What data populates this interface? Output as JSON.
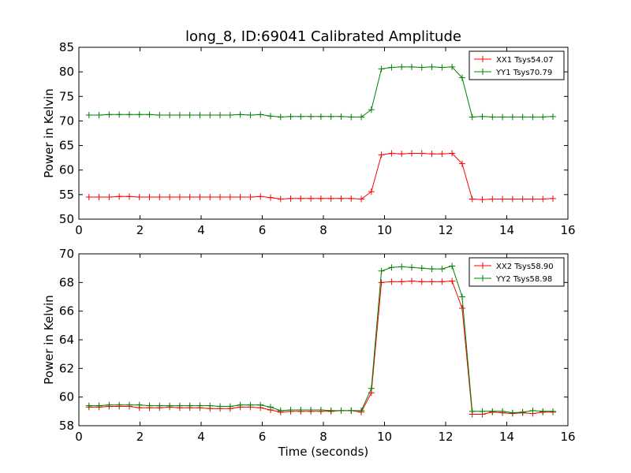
{
  "chart_data": [
    {
      "type": "line",
      "title": "long_8, ID:69041 Calibrated Amplitude",
      "xlabel": "",
      "ylabel": "Power in Kelvin",
      "xlim": [
        0,
        16
      ],
      "ylim": [
        50,
        85
      ],
      "xticks": [
        "0",
        "2",
        "4",
        "6",
        "8",
        "10",
        "12",
        "14",
        "16"
      ],
      "yticks": [
        "50",
        "55",
        "60",
        "65",
        "70",
        "75",
        "80",
        "85"
      ],
      "grid": false,
      "legend_position": "top-right",
      "x": [
        0.33,
        0.66,
        0.99,
        1.32,
        1.65,
        1.98,
        2.31,
        2.64,
        2.97,
        3.3,
        3.63,
        3.96,
        4.29,
        4.62,
        4.95,
        5.28,
        5.61,
        5.94,
        6.27,
        6.6,
        6.93,
        7.26,
        7.59,
        7.92,
        8.25,
        8.58,
        8.91,
        9.24,
        9.57,
        9.9,
        10.23,
        10.56,
        10.89,
        11.22,
        11.55,
        11.88,
        12.21,
        12.54,
        12.87,
        13.2,
        13.53,
        13.86,
        14.19,
        14.52,
        14.85,
        15.18,
        15.51
      ],
      "series": [
        {
          "name": "XX1 Tsys54.07",
          "color": "#ff0000",
          "values": [
            54.5,
            54.5,
            54.5,
            54.6,
            54.6,
            54.5,
            54.5,
            54.5,
            54.5,
            54.5,
            54.5,
            54.5,
            54.5,
            54.5,
            54.5,
            54.5,
            54.5,
            54.6,
            54.4,
            54.1,
            54.2,
            54.2,
            54.2,
            54.2,
            54.2,
            54.2,
            54.2,
            54.1,
            55.6,
            63.1,
            63.4,
            63.3,
            63.4,
            63.4,
            63.3,
            63.3,
            63.4,
            61.3,
            54.1,
            54.0,
            54.1,
            54.1,
            54.1,
            54.1,
            54.1,
            54.1,
            54.2
          ]
        },
        {
          "name": "YY1 Tsys70.79",
          "color": "#008000",
          "values": [
            71.2,
            71.2,
            71.3,
            71.3,
            71.3,
            71.3,
            71.3,
            71.2,
            71.2,
            71.2,
            71.2,
            71.2,
            71.2,
            71.2,
            71.2,
            71.3,
            71.2,
            71.3,
            71.0,
            70.8,
            70.9,
            70.9,
            70.9,
            70.9,
            70.9,
            70.9,
            70.8,
            70.8,
            72.3,
            80.6,
            80.9,
            81.0,
            81.0,
            80.9,
            81.0,
            80.9,
            81.0,
            78.8,
            70.8,
            70.9,
            70.8,
            70.8,
            70.8,
            70.8,
            70.8,
            70.8,
            70.9
          ]
        }
      ]
    },
    {
      "type": "line",
      "title": "",
      "xlabel": "Time (seconds)",
      "ylabel": "Power in Kelvin",
      "xlim": [
        0,
        16
      ],
      "ylim": [
        58,
        70
      ],
      "xticks": [
        "0",
        "2",
        "4",
        "6",
        "8",
        "10",
        "12",
        "14",
        "16"
      ],
      "yticks": [
        "58",
        "60",
        "62",
        "64",
        "66",
        "68",
        "70"
      ],
      "grid": false,
      "legend_position": "top-right",
      "x": [
        0.33,
        0.66,
        0.99,
        1.32,
        1.65,
        1.98,
        2.31,
        2.64,
        2.97,
        3.3,
        3.63,
        3.96,
        4.29,
        4.62,
        4.95,
        5.28,
        5.61,
        5.94,
        6.27,
        6.6,
        6.93,
        7.26,
        7.59,
        7.92,
        8.25,
        8.58,
        8.91,
        9.24,
        9.57,
        9.9,
        10.23,
        10.56,
        10.89,
        11.22,
        11.55,
        11.88,
        12.21,
        12.54,
        12.87,
        13.2,
        13.53,
        13.86,
        14.19,
        14.52,
        14.85,
        15.18,
        15.51
      ],
      "series": [
        {
          "name": "XX2 Tsys58.90",
          "color": "#ff0000",
          "values": [
            59.3,
            59.3,
            59.35,
            59.35,
            59.35,
            59.25,
            59.25,
            59.25,
            59.3,
            59.25,
            59.25,
            59.25,
            59.2,
            59.2,
            59.2,
            59.3,
            59.3,
            59.25,
            59.1,
            58.95,
            59.0,
            59.0,
            59.0,
            59.0,
            59.0,
            59.05,
            59.05,
            58.95,
            60.3,
            68.0,
            68.05,
            68.05,
            68.1,
            68.05,
            68.05,
            68.05,
            68.1,
            66.2,
            58.8,
            58.8,
            58.95,
            58.9,
            58.85,
            58.9,
            58.85,
            58.95,
            58.95
          ]
        },
        {
          "name": "YY2 Tsys58.98",
          "color": "#008000",
          "values": [
            59.4,
            59.4,
            59.45,
            59.45,
            59.45,
            59.45,
            59.4,
            59.4,
            59.4,
            59.4,
            59.4,
            59.4,
            59.4,
            59.35,
            59.35,
            59.45,
            59.45,
            59.45,
            59.3,
            59.05,
            59.1,
            59.1,
            59.1,
            59.1,
            59.05,
            59.05,
            59.05,
            59.05,
            60.6,
            68.8,
            69.05,
            69.1,
            69.05,
            69.0,
            68.95,
            68.95,
            69.15,
            67.0,
            59.0,
            59.0,
            59.0,
            59.0,
            58.9,
            58.95,
            59.05,
            59.0,
            59.0
          ]
        }
      ]
    }
  ]
}
